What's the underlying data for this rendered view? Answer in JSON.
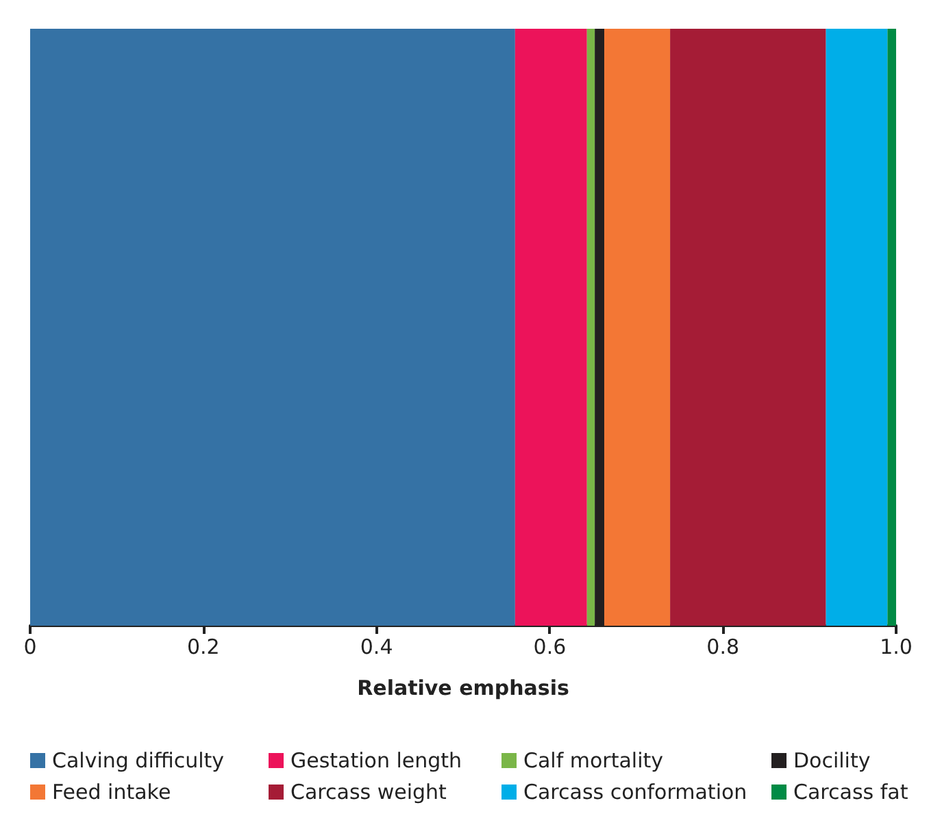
{
  "chart_data": {
    "type": "bar",
    "orientation": "horizontal",
    "stacked": true,
    "xlabel": "Relative emphasis",
    "categories": [
      null
    ],
    "series": [
      {
        "name": "Calving difficulty",
        "color": "#3572a5",
        "values": [
          0.56
        ]
      },
      {
        "name": "Gestation length",
        "color": "#ec135a",
        "values": [
          0.083
        ]
      },
      {
        "name": "Calf mortality",
        "color": "#7ab648",
        "values": [
          0.009
        ]
      },
      {
        "name": "Docility",
        "color": "#231f20",
        "values": [
          0.011
        ]
      },
      {
        "name": "Feed intake",
        "color": "#f37735",
        "values": [
          0.076
        ]
      },
      {
        "name": "Carcass weight",
        "color": "#a51c36",
        "values": [
          0.18
        ]
      },
      {
        "name": "Carcass conformation",
        "color": "#00aee8",
        "values": [
          0.071
        ]
      },
      {
        "name": "Carcass fat",
        "color": "#008b45",
        "values": [
          0.01
        ]
      }
    ],
    "xlim": [
      0,
      1
    ],
    "xticks": [
      0,
      0.2,
      0.4,
      0.6,
      0.8,
      {
        "value": 1,
        "label": "1.0"
      }
    ],
    "grid": false,
    "legend": "bottom"
  }
}
